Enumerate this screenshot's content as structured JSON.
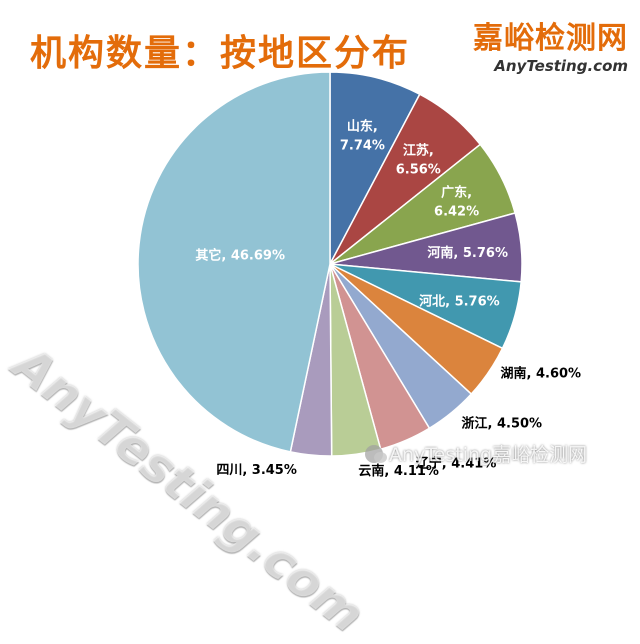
{
  "chart_data": {
    "type": "pie",
    "title": "机构数量：按地区分布",
    "slices": [
      {
        "label": "山东",
        "value": 7.74,
        "display": "7.74%",
        "color": "#4572a7"
      },
      {
        "label": "江苏",
        "value": 6.56,
        "display": "6.56%",
        "color": "#aa4643"
      },
      {
        "label": "广东",
        "value": 6.42,
        "display": "6.42%",
        "color": "#89a54e"
      },
      {
        "label": "河南",
        "value": 5.76,
        "display": "5.76%",
        "color": "#71588f"
      },
      {
        "label": "河北",
        "value": 5.76,
        "display": "5.76%",
        "color": "#4198af"
      },
      {
        "label": "湖南",
        "value": 4.6,
        "display": "4.60%",
        "color": "#db843d"
      },
      {
        "label": "浙江",
        "value": 4.5,
        "display": "4.50%",
        "color": "#93a9cf"
      },
      {
        "label": "辽宁",
        "value": 4.41,
        "display": "4.41%",
        "color": "#d19392"
      },
      {
        "label": "云南",
        "value": 4.11,
        "display": "4.11%",
        "color": "#b9cd96"
      },
      {
        "label": "四川",
        "value": 3.45,
        "display": "3.45%",
        "color": "#a99bbd"
      },
      {
        "label": "其它",
        "value": 46.69,
        "display": "46.69%",
        "color": "#92c3d4"
      }
    ]
  },
  "brand": {
    "name_cn": "嘉峪检测网",
    "name_en": "AnyTesting.com"
  },
  "watermarks": {
    "diagonal": "AnyTesting.com",
    "bottom": "AnyTesting嘉峪检测网"
  }
}
